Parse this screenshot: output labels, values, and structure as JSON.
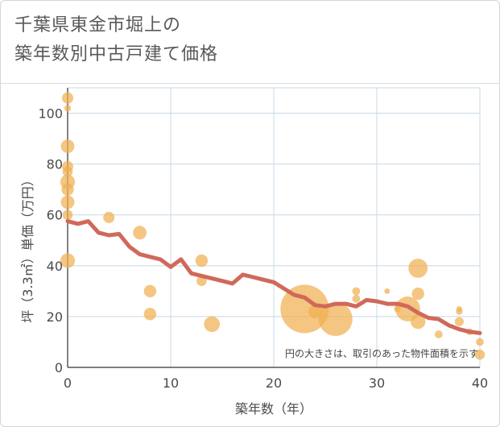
{
  "chart": {
    "title_line1": "千葉県東金市堀上の",
    "title_line2": "築年数別中古戸建て価格",
    "note": "円の大きさは、取引のあった物件面積を示す",
    "colors": {
      "bubble": "#f0b050",
      "line": "#d0695a",
      "grid": "#c8d8e4"
    }
  },
  "chart_data": {
    "type": "scatter",
    "xlabel": "築年数（年）",
    "ylabel": "坪（3.3㎡）単価（万円）",
    "xlim": [
      0,
      40
    ],
    "ylim": [
      0,
      110
    ],
    "xticks": [
      0,
      10,
      20,
      30,
      40
    ],
    "yticks": [
      0,
      20,
      40,
      60,
      80,
      100
    ],
    "grid": true,
    "series": [
      {
        "kind": "bubble",
        "points": [
          {
            "x": 0,
            "y": 106,
            "s": 1.0
          },
          {
            "x": 0,
            "y": 102,
            "s": 0.6
          },
          {
            "x": 0,
            "y": 87,
            "s": 1.2
          },
          {
            "x": 0,
            "y": 79,
            "s": 1.0
          },
          {
            "x": 0,
            "y": 77,
            "s": 0.9
          },
          {
            "x": 0,
            "y": 73,
            "s": 1.3
          },
          {
            "x": 0,
            "y": 70,
            "s": 1.1
          },
          {
            "x": 0,
            "y": 65,
            "s": 1.2
          },
          {
            "x": 0,
            "y": 60,
            "s": 0.9
          },
          {
            "x": 0,
            "y": 42,
            "s": 1.3
          },
          {
            "x": 4,
            "y": 59,
            "s": 1.0
          },
          {
            "x": 7,
            "y": 53,
            "s": 1.2
          },
          {
            "x": 8,
            "y": 30,
            "s": 1.1
          },
          {
            "x": 8,
            "y": 21,
            "s": 1.1
          },
          {
            "x": 13,
            "y": 42,
            "s": 1.1
          },
          {
            "x": 13,
            "y": 34,
            "s": 0.9
          },
          {
            "x": 14,
            "y": 17,
            "s": 1.4
          },
          {
            "x": 23,
            "y": 23,
            "s": 4.3
          },
          {
            "x": 24,
            "y": 22,
            "s": 1.2
          },
          {
            "x": 26,
            "y": 19,
            "s": 3.0
          },
          {
            "x": 28,
            "y": 30,
            "s": 0.7
          },
          {
            "x": 28,
            "y": 27,
            "s": 0.7
          },
          {
            "x": 31,
            "y": 30,
            "s": 0.5
          },
          {
            "x": 32,
            "y": 23,
            "s": 0.6
          },
          {
            "x": 33,
            "y": 23,
            "s": 2.2
          },
          {
            "x": 34,
            "y": 39,
            "s": 1.7
          },
          {
            "x": 34,
            "y": 29,
            "s": 1.1
          },
          {
            "x": 34,
            "y": 18,
            "s": 1.3
          },
          {
            "x": 36,
            "y": 13,
            "s": 0.7
          },
          {
            "x": 38,
            "y": 23,
            "s": 0.5
          },
          {
            "x": 38,
            "y": 22,
            "s": 0.6
          },
          {
            "x": 38,
            "y": 18,
            "s": 0.8
          },
          {
            "x": 39,
            "y": 14,
            "s": 0.6
          },
          {
            "x": 40,
            "y": 10,
            "s": 0.7
          },
          {
            "x": 40,
            "y": 5,
            "s": 0.9
          }
        ]
      },
      {
        "kind": "line",
        "points": [
          [
            0,
            57.5
          ],
          [
            1,
            56.5
          ],
          [
            2,
            57.5
          ],
          [
            3,
            53
          ],
          [
            4,
            52
          ],
          [
            5,
            52.5
          ],
          [
            6,
            47.5
          ],
          [
            7,
            44.5
          ],
          [
            8,
            43.5
          ],
          [
            9,
            42.5
          ],
          [
            10,
            39.5
          ],
          [
            11,
            42.5
          ],
          [
            12,
            37
          ],
          [
            13,
            36
          ],
          [
            14,
            35
          ],
          [
            15,
            34
          ],
          [
            16,
            33
          ],
          [
            17,
            36.5
          ],
          [
            18,
            35.5
          ],
          [
            19,
            34.5
          ],
          [
            20,
            33.5
          ],
          [
            21,
            31
          ],
          [
            22,
            28.5
          ],
          [
            23,
            27.5
          ],
          [
            24,
            24.5
          ],
          [
            25,
            24
          ],
          [
            26,
            25
          ],
          [
            27,
            25
          ],
          [
            28,
            24
          ],
          [
            29,
            26.5
          ],
          [
            30,
            26
          ],
          [
            31,
            25
          ],
          [
            32,
            25
          ],
          [
            33,
            24
          ],
          [
            34,
            21.5
          ],
          [
            35,
            19.5
          ],
          [
            36,
            19
          ],
          [
            37,
            16.5
          ],
          [
            38,
            15
          ],
          [
            39,
            14
          ],
          [
            40,
            13.5
          ]
        ]
      }
    ]
  }
}
